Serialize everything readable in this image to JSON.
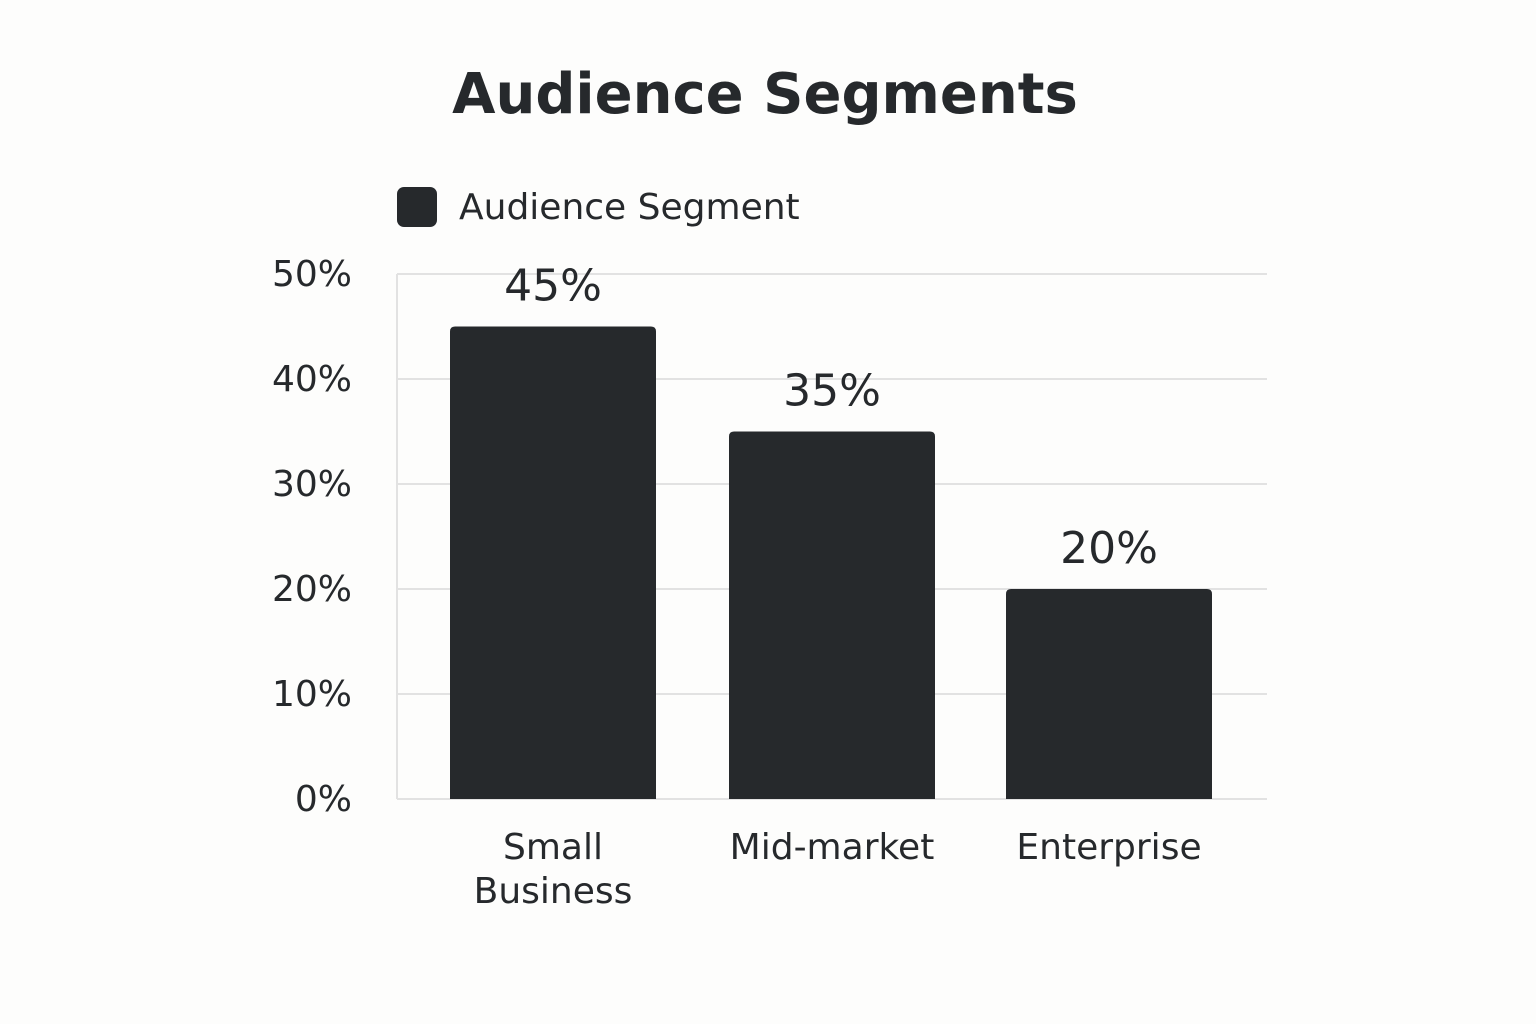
{
  "chart_data": {
    "type": "bar",
    "title": "Audience Segments",
    "categories": [
      "Small Business",
      "Mid-market",
      "Enterprise"
    ],
    "series": [
      {
        "name": "Audience Segment",
        "color": "#26292c",
        "values": [
          45,
          35,
          20
        ],
        "value_labels": [
          "45%",
          "35%",
          "20%"
        ]
      }
    ],
    "ylim": [
      0,
      50
    ],
    "yticks": [
      {
        "value": 0,
        "label": "0%"
      },
      {
        "value": 10,
        "label": "10%"
      },
      {
        "value": 20,
        "label": "20%"
      },
      {
        "value": 30,
        "label": "30%"
      },
      {
        "value": 40,
        "label": "40%"
      },
      {
        "value": 50,
        "label": "50%"
      }
    ],
    "grid": true,
    "legend": "top-left"
  }
}
